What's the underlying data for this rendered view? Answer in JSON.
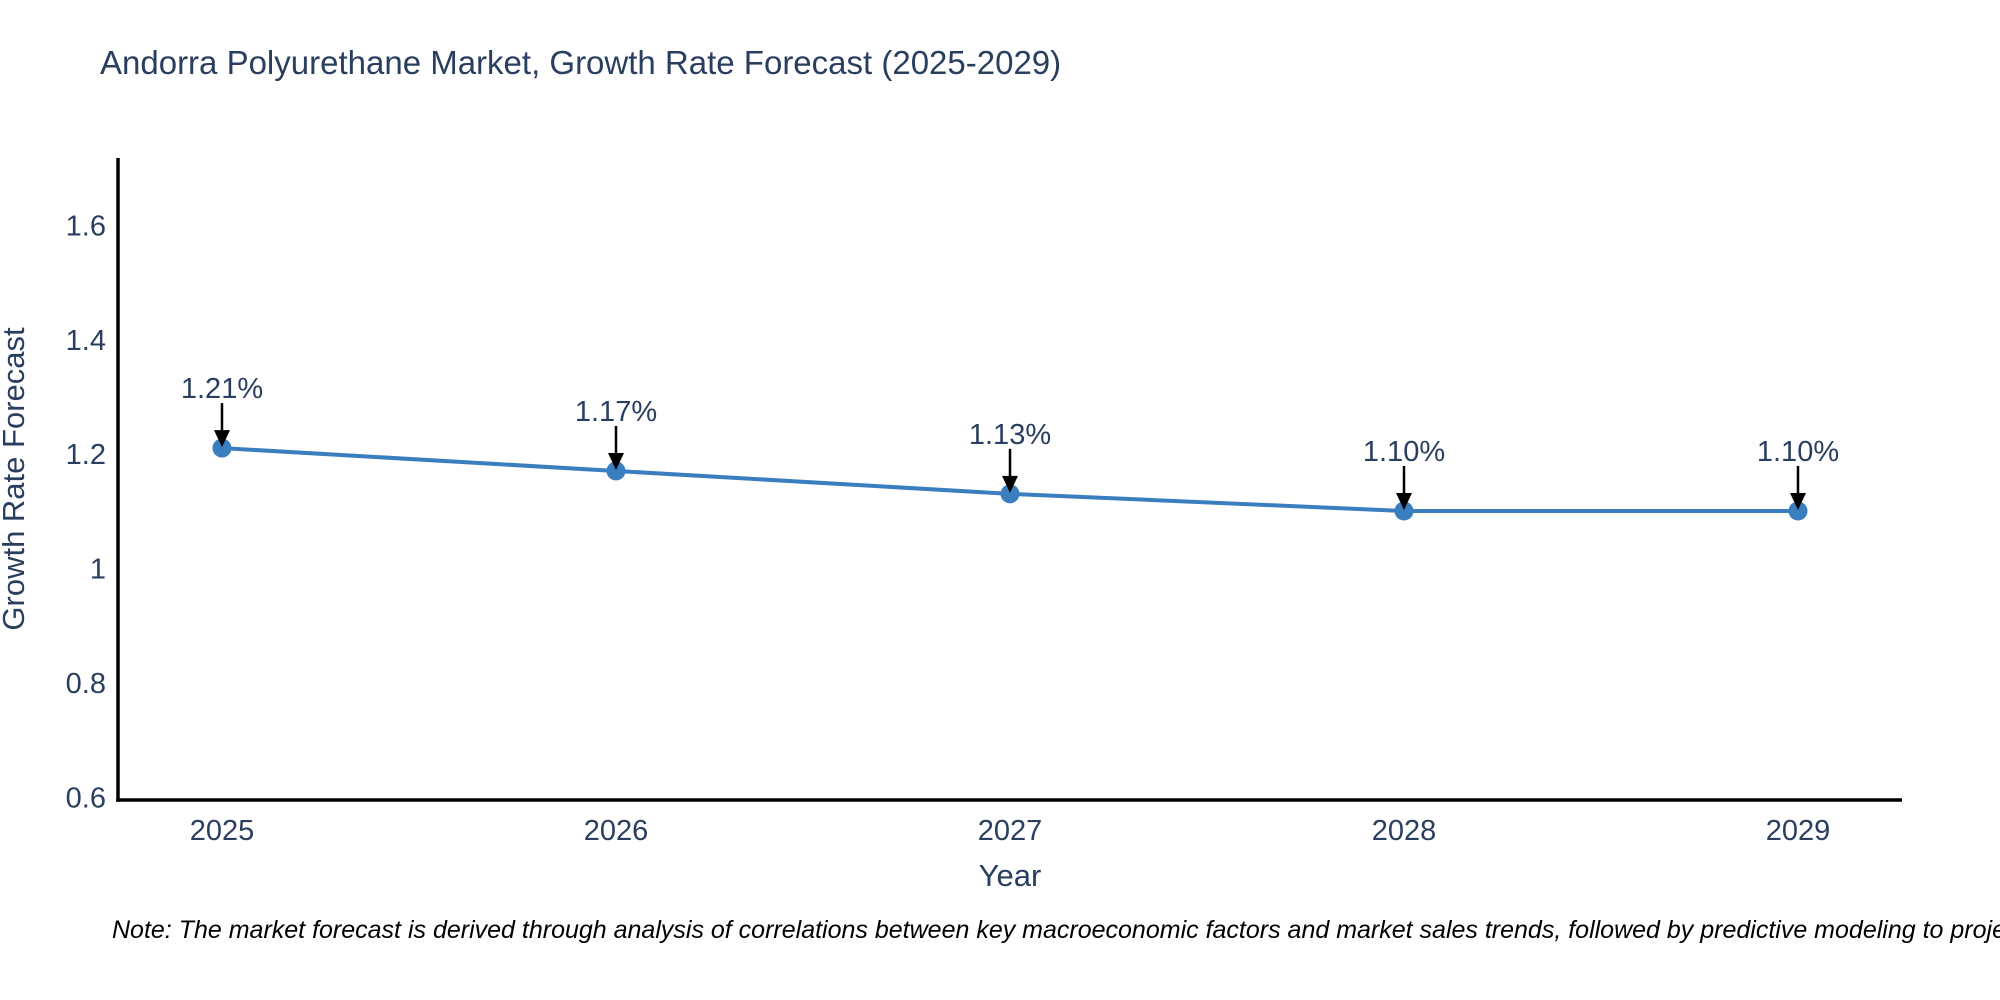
{
  "title": "Andorra Polyurethane Market, Growth Rate Forecast (2025-2029)",
  "note": "Note: The market forecast is derived through analysis of correlations between key macroeconomic factors and market sales trends, followed by predictive modeling to project future sales",
  "colors": {
    "background": "#ffffff",
    "line": "#3a7ebf",
    "marker": "#3a7ebf",
    "axis": "#000000",
    "arrow": "#000000",
    "text": "#2a3f5f",
    "note_text": "#000000"
  },
  "chart_data": {
    "type": "line",
    "title": "Andorra Polyurethane Market, Growth Rate Forecast (2025-2029)",
    "x": [
      2025,
      2026,
      2027,
      2028,
      2029
    ],
    "values": [
      1.21,
      1.17,
      1.13,
      1.1,
      1.1
    ],
    "point_labels": [
      "1.21%",
      "1.17%",
      "1.13%",
      "1.10%",
      "1.10%"
    ],
    "xlabel": "Year",
    "ylabel": "Growth Rate Forecast",
    "xtick_labels": [
      "2025",
      "2026",
      "2027",
      "2028",
      "2029"
    ],
    "yticks": [
      0.6,
      0.8,
      1,
      1.2,
      1.4,
      1.6
    ],
    "ytick_labels": [
      "0.6",
      "0.8",
      "1",
      "1.2",
      "1.4",
      "1.6"
    ],
    "ylim": [
      0.595,
      1.715
    ],
    "grid": false,
    "legend": "none",
    "annotation_style": "value label with black down-arrow above each marker"
  }
}
